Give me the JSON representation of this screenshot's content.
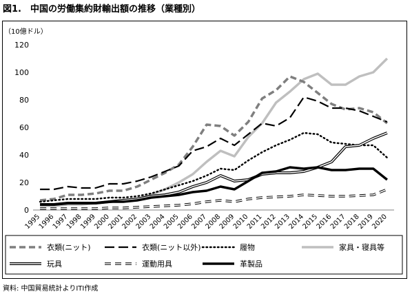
{
  "figure_title": "図1.　中国の労働集約財輸出額の推移（業種別）",
  "source_note": "資料: 中国貿易統計よりITI作成",
  "chart_data": {
    "type": "line",
    "y_unit_label": "（10億ドル）",
    "ylim": [
      0,
      120
    ],
    "y_ticks": [
      0,
      20,
      40,
      60,
      80,
      100,
      120
    ],
    "categories": [
      "1995",
      "1996",
      "1997",
      "1998",
      "1999",
      "2000",
      "2001",
      "2002",
      "2003",
      "2004",
      "2005",
      "2006",
      "2007",
      "2008",
      "2009",
      "2010",
      "2011",
      "2012",
      "2013",
      "2014",
      "2015",
      "2016",
      "2017",
      "2018",
      "2019",
      "2020"
    ],
    "grid": false,
    "legend_position": "bottom",
    "series": [
      {
        "name": "衣類(ニット)",
        "color": "#7f7f7f",
        "style": "dashed-bold",
        "values": [
          7,
          8,
          11,
          11,
          12,
          14,
          14,
          17,
          22,
          27,
          33,
          46,
          62,
          61,
          54,
          64,
          81,
          87,
          97,
          93,
          85,
          77,
          73,
          74,
          71,
          63
        ]
      },
      {
        "name": "衣類(ニット以外)",
        "color": "#000000",
        "style": "long-dash",
        "values": [
          15,
          15,
          17,
          16,
          16,
          19,
          19,
          21,
          24,
          28,
          32,
          43,
          46,
          52,
          47,
          55,
          63,
          61,
          67,
          82,
          79,
          74,
          74,
          72,
          68,
          64
        ]
      },
      {
        "name": "履物",
        "color": "#000000",
        "style": "dotted",
        "values": [
          6,
          7,
          8,
          8,
          8,
          9,
          9,
          10,
          12,
          15,
          18,
          21,
          25,
          30,
          29,
          36,
          42,
          47,
          51,
          56,
          55,
          49,
          48,
          47,
          47,
          38
        ]
      },
      {
        "name": "家具・寝具等",
        "color": "#bfbfbf",
        "style": "solid-thick",
        "values": [
          3,
          3,
          4,
          4,
          5,
          6,
          7,
          8,
          11,
          15,
          20,
          26,
          35,
          43,
          39,
          53,
          63,
          78,
          86,
          95,
          99,
          91,
          91,
          97,
          100,
          110
        ]
      },
      {
        "name": "玩具",
        "color": "#000000",
        "style": "double",
        "values": [
          4,
          4,
          5,
          5,
          5,
          6,
          7,
          8,
          10,
          11,
          13,
          17,
          20,
          25,
          21,
          22,
          26,
          27,
          27,
          28,
          31,
          35,
          46,
          47,
          52,
          56
        ]
      },
      {
        "name": "運動用具",
        "color": "#000000",
        "style": "dashed-hollow",
        "values": [
          1,
          1,
          1,
          1,
          1,
          1.5,
          1.5,
          2,
          2.5,
          3,
          3.5,
          4.5,
          6,
          7,
          6,
          8,
          9,
          9.5,
          10,
          11,
          10.5,
          10,
          10,
          10.5,
          11,
          15
        ]
      },
      {
        "name": "革製品",
        "color": "#000000",
        "style": "solid-bold",
        "values": [
          4,
          4,
          5,
          5,
          5,
          6,
          6,
          7,
          9,
          10,
          11,
          13,
          14,
          17,
          15,
          21,
          27,
          28,
          31,
          30,
          31,
          29,
          29,
          30,
          30,
          22
        ]
      }
    ]
  }
}
